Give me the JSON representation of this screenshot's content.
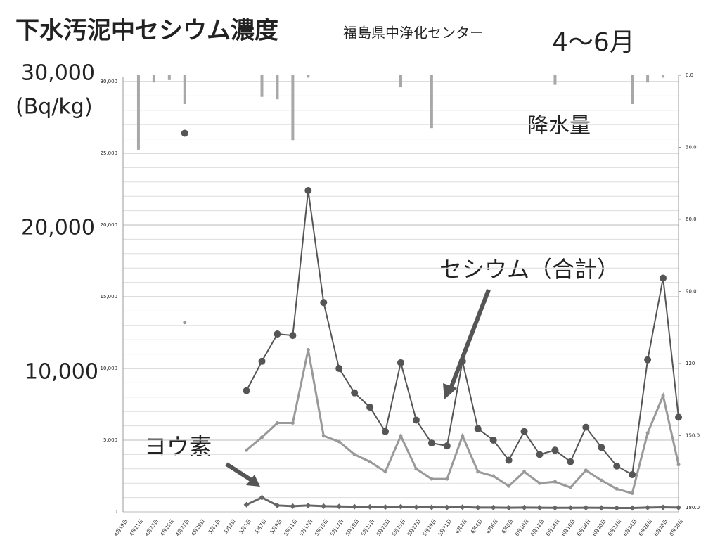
{
  "chart_data": {
    "type": "line",
    "title": "下水汚泥中セシウム濃度",
    "subtitle": "福島県中浄化センター",
    "period": "4〜6月",
    "y_axis_labels": [
      "30,000",
      "(Bq/kg)",
      "20,000",
      "10,000"
    ],
    "annotations": [
      "降水量",
      "セシウム（合計）",
      "ヨウ素"
    ],
    "categories": [
      "4月19日",
      "4月21日",
      "4月23日",
      "4月25日",
      "4月27日",
      "4月29日",
      "5月1日",
      "5月3日",
      "5月5日",
      "5月7日",
      "5月9日",
      "5月11日",
      "5月13日",
      "5月15日",
      "5月17日",
      "5月19日",
      "5月21日",
      "5月23日",
      "5月25日",
      "5月27日",
      "5月29日",
      "5月31日",
      "6月2日",
      "6月4日",
      "6月6日",
      "6月8日",
      "6月10日",
      "6月12日",
      "6月14日",
      "6月16日",
      "6月18日",
      "6月20日",
      "6月22日",
      "6月24日",
      "6月26日",
      "6月28日",
      "6月30日"
    ],
    "series": [
      {
        "name": "セシウム（合計）",
        "color": "#555555",
        "values": [
          null,
          null,
          null,
          null,
          26400,
          null,
          null,
          null,
          8450,
          10500,
          12400,
          12300,
          22400,
          14600,
          10000,
          8300,
          7300,
          5600,
          10400,
          6400,
          4800,
          4600,
          10500,
          5800,
          5000,
          3600,
          5600,
          4000,
          4300,
          3500,
          5900,
          4500,
          3200,
          2600,
          10600,
          16300,
          6600
        ]
      },
      {
        "color": "#999999",
        "values": [
          null,
          null,
          null,
          null,
          13200,
          null,
          null,
          null,
          4300,
          5200,
          6200,
          6200,
          11300,
          5300,
          4900,
          4000,
          3500,
          2800,
          5300,
          3000,
          2300,
          2300,
          5300,
          2800,
          2500,
          1800,
          2800,
          2000,
          2100,
          1700,
          2900,
          2200,
          1600,
          1300,
          5500,
          8100,
          3300
        ]
      },
      {
        "name": "ヨウ素",
        "color": "#666666",
        "values": [
          null,
          null,
          null,
          null,
          null,
          null,
          null,
          null,
          500,
          1000,
          450,
          400,
          450,
          400,
          380,
          360,
          350,
          340,
          360,
          330,
          320,
          310,
          330,
          300,
          300,
          290,
          300,
          290,
          280,
          280,
          290,
          280,
          270,
          270,
          300,
          320,
          300
        ]
      },
      {
        "name": "降水量",
        "color": "#a8a8a8",
        "axis": "y2",
        "values": [
          0,
          31,
          3,
          2,
          12,
          0,
          0,
          0,
          0,
          9,
          10,
          27,
          1,
          0,
          0,
          0,
          0,
          0,
          5,
          0,
          22,
          0,
          0,
          0,
          0,
          0,
          0,
          0,
          4,
          0,
          0,
          0,
          0,
          12,
          3,
          1,
          0
        ]
      }
    ],
    "ylim": [
      0,
      30000
    ],
    "yticks": [
      0,
      {
        "value": 5000,
        "label": "5,000"
      },
      {
        "value": 10000,
        "label": "10,000"
      },
      {
        "value": 15000,
        "label": "15,000"
      },
      {
        "value": 20000,
        "label": "20,000"
      },
      {
        "value": 25000,
        "label": "25,000"
      },
      {
        "value": 30000,
        "label": "30,000"
      }
    ],
    "y2lim": [
      0,
      180
    ],
    "y2ticks": [
      {
        "value": 0,
        "label": "0.0"
      },
      {
        "value": 30,
        "label": "30.0"
      },
      {
        "value": 60,
        "label": "60.0"
      },
      {
        "value": 90,
        "label": "90.0"
      },
      120,
      {
        "value": 150,
        "label": "150.0"
      },
      {
        "value": 180,
        "label": "180.0"
      }
    ],
    "grid": true
  }
}
